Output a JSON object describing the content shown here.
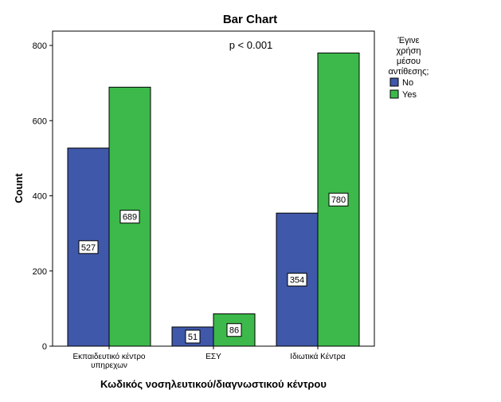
{
  "chart_data": {
    "type": "bar",
    "title": "Bar Chart",
    "xlabel": "Κωδικός νοσηλευτικού/διαγνωστικού κέντρου",
    "ylabel": "Count",
    "categories": [
      [
        "Εκπαιδευτικό κέντρο",
        "υπηρεχων"
      ],
      [
        "ΕΣΥ"
      ],
      [
        "Ιδιωτικά Κέντρα"
      ]
    ],
    "series": [
      {
        "name": "No",
        "values": [
          527,
          51,
          354
        ],
        "color": "#3f58a9"
      },
      {
        "name": "Yes",
        "values": [
          689,
          86,
          780
        ],
        "color": "#3cb94a"
      }
    ],
    "ylim": [
      0,
      800
    ],
    "yticks": [
      0,
      200,
      400,
      600,
      800
    ],
    "grid": false,
    "legend": {
      "title_lines": [
        "Έγινε",
        "χρήση",
        "μέσου",
        "αντίθεσης;"
      ],
      "placement": "right"
    },
    "annotation": "p < 0.001",
    "data_labels": true
  }
}
